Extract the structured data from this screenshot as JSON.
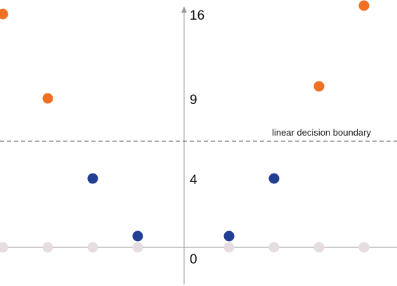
{
  "chart_data": {
    "type": "scatter",
    "ytick_labels": [
      "16",
      "9",
      "4",
      "0"
    ],
    "yticks": [
      16,
      9,
      4,
      0
    ],
    "boundary": {
      "y": 6.7,
      "label": "linear decision boundary"
    },
    "projected_x": [
      -4,
      -3,
      -2,
      -1,
      1,
      2,
      3,
      4
    ],
    "series": [
      {
        "color": "#f07124",
        "points": [
          [
            -4,
            16
          ],
          [
            -3,
            9
          ],
          [
            3,
            10
          ],
          [
            4,
            16.7
          ]
        ]
      },
      {
        "color": "#233f94",
        "points": [
          [
            -2,
            4
          ],
          [
            -1,
            1
          ],
          [
            1,
            1
          ],
          [
            2,
            4
          ]
        ]
      }
    ],
    "projection_color": "#e6dde0",
    "axis_color": "#9a9a9a",
    "boundary_color": "#555555"
  }
}
